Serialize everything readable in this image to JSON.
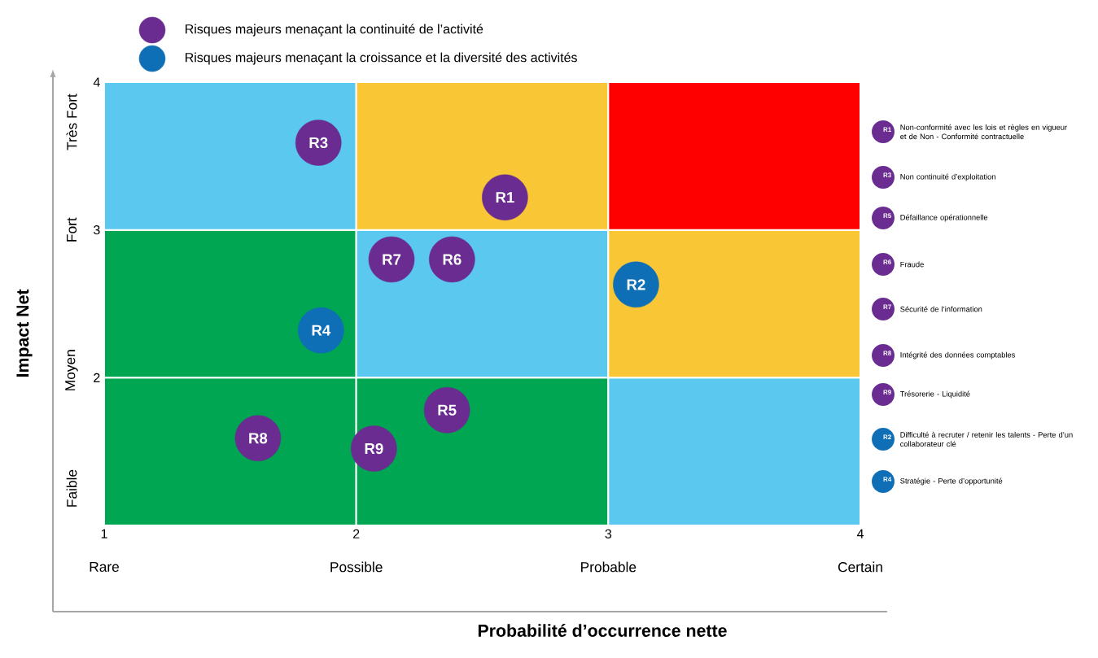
{
  "chart_data": {
    "type": "scatter",
    "xlabel": "Probabilité d’occurrence nette",
    "ylabel": "Impact Net",
    "xlim": [
      1,
      4
    ],
    "ylim": [
      1,
      4
    ],
    "xticks": [
      1,
      2,
      3,
      4
    ],
    "yticks": [
      2,
      3,
      4
    ],
    "marker": "circle",
    "legend": "top left",
    "series": [
      {
        "name": "Risques majeurs menaçant la continuité de l’activité",
        "color": "#6a2c91",
        "x": [
          2.59,
          1.85,
          2.36,
          2.38,
          2.14,
          1.61,
          2.07
        ],
        "values": [
          3.22,
          3.59,
          1.78,
          2.8,
          2.8,
          1.59,
          1.52
        ]
      },
      {
        "name": "Risques majeurs menaçant la croissance et la diversité des activités",
        "color": "#0e6fb7",
        "x": [
          3.11,
          1.86
        ],
        "values": [
          2.63,
          2.32
        ]
      },
      {
        "type": "bar",
        "x": [
          1.5,
          2.5,
          3.5
        ],
        "base": [
          1,
          1,
          1
        ],
        "values": [
          1,
          1,
          1
        ],
        "colors": [
          "#00a651",
          "#00a651",
          "#5bc8f0"
        ]
      },
      {
        "type": "bar",
        "x": [
          1.5,
          2.5,
          3.5
        ],
        "base": [
          2,
          2,
          2
        ],
        "values": [
          1,
          1,
          1
        ],
        "colors": [
          "#00a651",
          "#5bc8f0",
          "#f9c735"
        ]
      },
      {
        "type": "bar",
        "x": [
          1.5,
          2.5,
          3.5
        ],
        "base": [
          3,
          3,
          3
        ],
        "values": [
          1,
          1,
          1
        ],
        "colors": [
          "#5bc8f0",
          "#f9c735",
          "#ff0000"
        ]
      }
    ],
    "annotations": [
      {
        "text": "R1",
        "x": 2.59,
        "y": 3.22
      },
      {
        "text": "R3",
        "x": 1.85,
        "y": 3.59
      },
      {
        "text": "R5",
        "x": 2.36,
        "y": 1.78
      },
      {
        "text": "R6",
        "x": 2.38,
        "y": 2.8
      },
      {
        "text": "R7",
        "x": 2.14,
        "y": 2.8
      },
      {
        "text": "R8",
        "x": 1.61,
        "y": 1.59
      },
      {
        "text": "R9",
        "x": 2.07,
        "y": 1.52
      },
      {
        "text": "R2",
        "x": 3.11,
        "y": 2.63
      },
      {
        "text": "R4",
        "x": 1.86,
        "y": 2.32
      },
      "R1",
      "R3",
      "R5",
      "R6",
      "R7",
      "R8",
      "R9",
      "R2",
      "R4",
      "Non-conformité avec les lois et règles en vigueur et de Non - Conformité contractuelle",
      "Non continuité d’exploitation",
      "Défaillance opérationnelle",
      "Fraude",
      "Sécurité de l’information",
      "Intégrité des données comptables",
      "Trésorerie - Liquidité",
      "Difficulté à recruter / retenir les talents - Perte d’un collaborateur clé",
      "Stratégie - Perte d’opportunité",
      "Rare",
      "Possible",
      "Probable",
      "Certain",
      "Très Fort",
      "Fort",
      "Moyen",
      "Faible"
    ]
  }
}
